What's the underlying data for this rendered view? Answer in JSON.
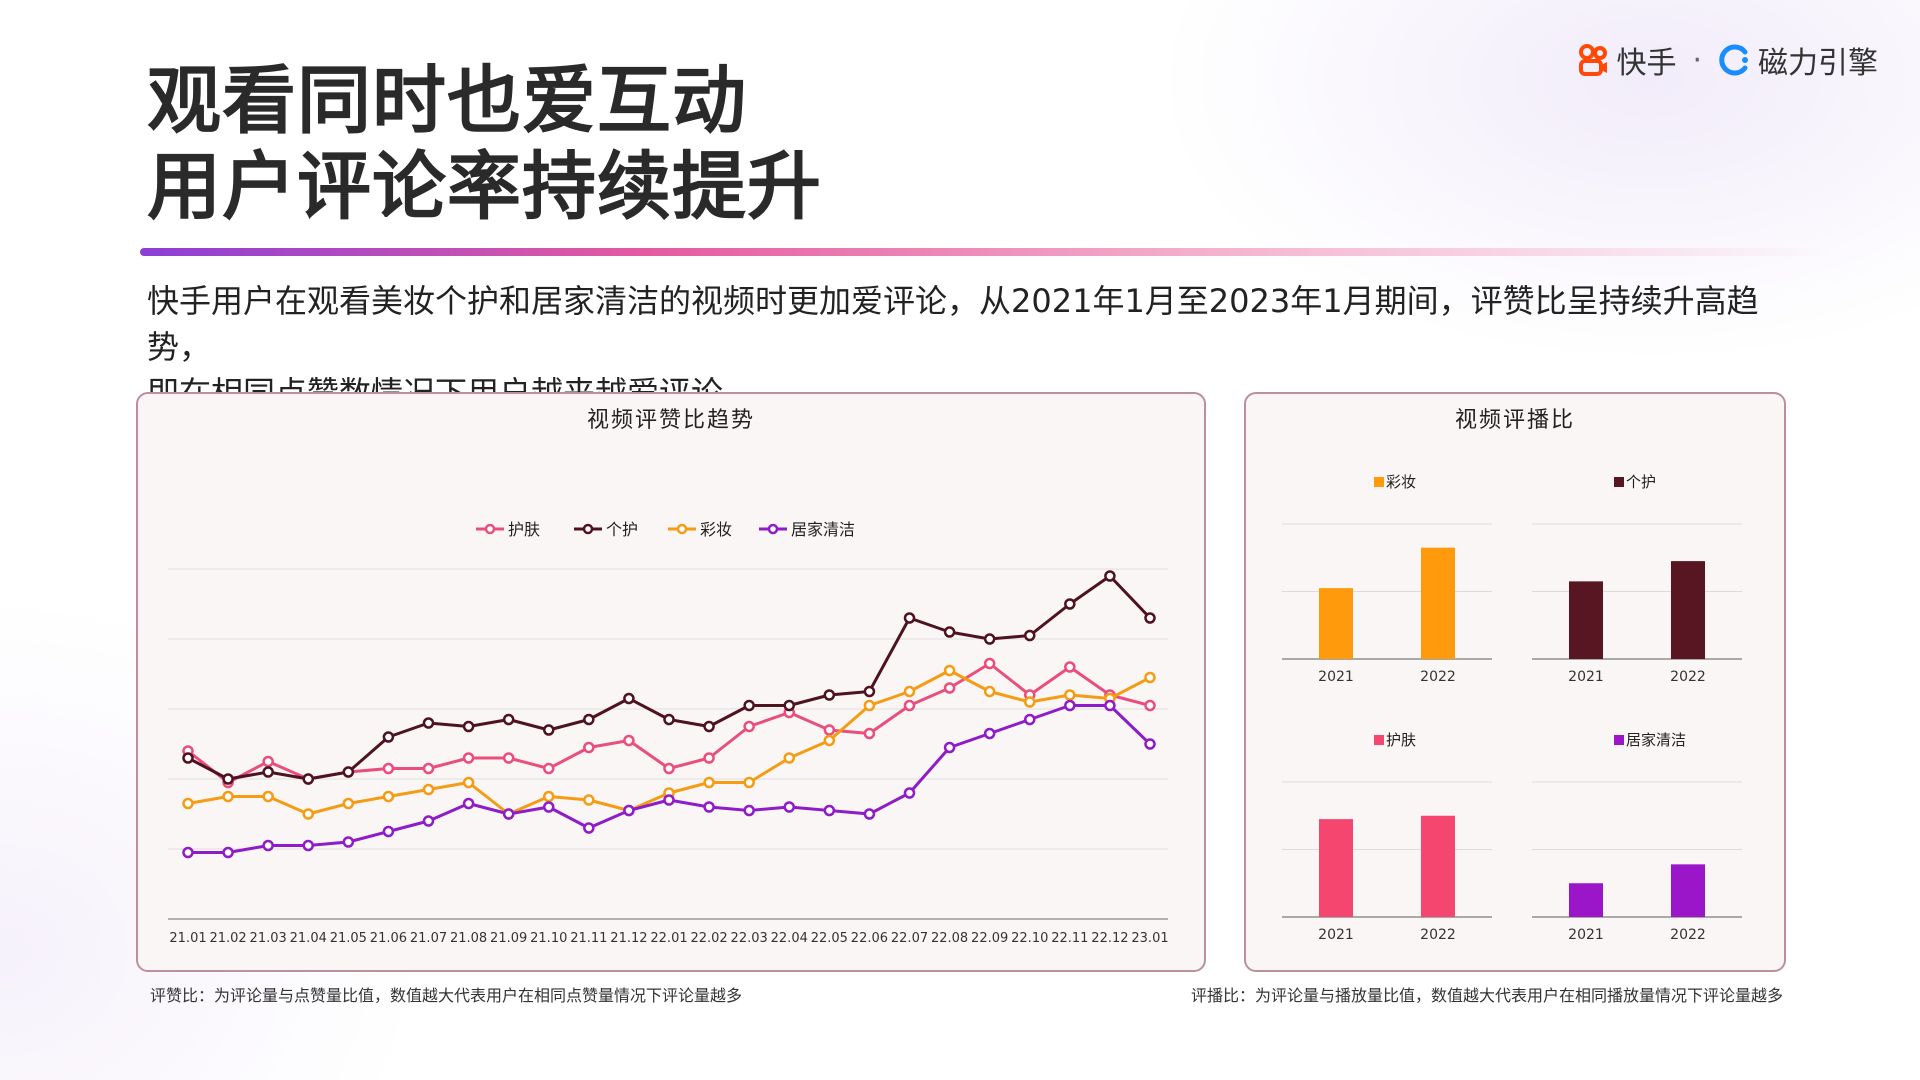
{
  "title": {
    "line1": "观看同时也爱互动",
    "line2": "用户评论率持续提升"
  },
  "brand": {
    "kuaishou": "快手",
    "separator": "·",
    "cili": "磁力引擎"
  },
  "description": {
    "line1": "快手用户在观看美妆个护和居家清洁的视频时更加爱评论，从2021年1月至2023年1月期间，评赞比呈持续升高趋势，",
    "line2": "即在相同点赞数情况下用户越来越爱评论。"
  },
  "footnotes": {
    "left": "评赞比：为评论量与点赞量比值，数值越大代表用户在相同点赞量情况下评论量越多",
    "right": "评播比：为评论量与播放量比值，数值越大代表用户在相同播放量情况下评论量越多"
  },
  "colors": {
    "护肤": "#e94f7c",
    "个护": "#4e1220",
    "彩妆": "#f59c15",
    "居家清洁": "#8e1cc7",
    "bar_护肤": "#f5466f",
    "bar_个护": "#581522",
    "bar_彩妆": "#ff9a0d",
    "bar_居家清洁": "#9a16c8"
  },
  "chart_data": [
    {
      "type": "line",
      "title": "视频评赞比趋势",
      "legend_position": "top-center",
      "grid": true,
      "ylim": [
        0,
        10
      ],
      "categories": [
        "21.01",
        "21.02",
        "21.03",
        "21.04",
        "21.05",
        "21.06",
        "21.07",
        "21.08",
        "21.09",
        "21.10",
        "21.11",
        "21.12",
        "22.01",
        "22.02",
        "22.03",
        "22.04",
        "22.05",
        "22.06",
        "22.07",
        "22.08",
        "22.09",
        "22.10",
        "22.11",
        "22.12",
        "23.01"
      ],
      "series": [
        {
          "name": "护肤",
          "values": [
            4.8,
            3.9,
            4.5,
            4.0,
            4.2,
            4.3,
            4.3,
            4.6,
            4.6,
            4.3,
            4.9,
            5.1,
            4.3,
            4.6,
            5.5,
            5.9,
            5.4,
            5.3,
            6.1,
            6.6,
            7.3,
            6.4,
            7.2,
            6.4,
            6.1
          ]
        },
        {
          "name": "个护",
          "values": [
            4.6,
            4.0,
            4.2,
            4.0,
            4.2,
            5.2,
            5.6,
            5.5,
            5.7,
            5.4,
            5.7,
            6.3,
            5.7,
            5.5,
            6.1,
            6.1,
            6.4,
            6.5,
            8.6,
            8.2,
            8.0,
            8.1,
            9.0,
            9.8,
            8.6
          ]
        },
        {
          "name": "彩妆",
          "values": [
            3.3,
            3.5,
            3.5,
            3.0,
            3.3,
            3.5,
            3.7,
            3.9,
            3.0,
            3.5,
            3.4,
            3.1,
            3.6,
            3.9,
            3.9,
            4.6,
            5.1,
            6.1,
            6.5,
            7.1,
            6.5,
            6.2,
            6.4,
            6.3,
            6.9
          ]
        },
        {
          "name": "居家清洁",
          "values": [
            1.9,
            1.9,
            2.1,
            2.1,
            2.2,
            2.5,
            2.8,
            3.3,
            3.0,
            3.2,
            2.6,
            3.1,
            3.4,
            3.2,
            3.1,
            3.2,
            3.1,
            3.0,
            3.6,
            4.9,
            5.3,
            5.7,
            6.1,
            6.1,
            5.0
          ]
        }
      ]
    },
    {
      "type": "bar",
      "title": "视频评播比",
      "panels": [
        {
          "name": "彩妆",
          "categories": [
            "2021",
            "2022"
          ],
          "values": [
            1.05,
            1.65
          ],
          "ylim": [
            0,
            2.0
          ]
        },
        {
          "name": "个护",
          "categories": [
            "2021",
            "2022"
          ],
          "values": [
            1.15,
            1.45
          ],
          "ylim": [
            0,
            2.0
          ]
        },
        {
          "name": "护肤",
          "categories": [
            "2021",
            "2022"
          ],
          "values": [
            1.45,
            1.5
          ],
          "ylim": [
            0,
            2.0
          ]
        },
        {
          "name": "居家清洁",
          "categories": [
            "2021",
            "2022"
          ],
          "values": [
            0.5,
            0.78
          ],
          "ylim": [
            0,
            2.0
          ]
        }
      ]
    }
  ]
}
